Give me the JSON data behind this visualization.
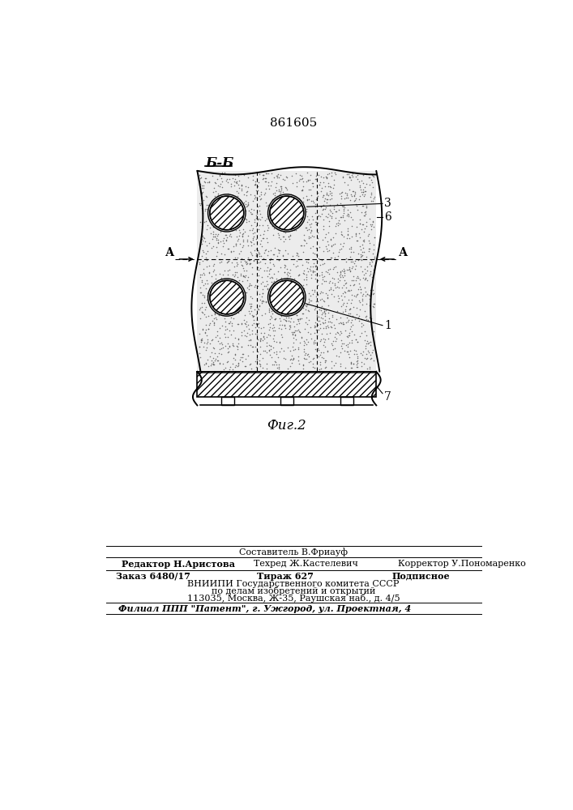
{
  "title_patent": "861605",
  "section_label": "Б-Б",
  "fig_label": "Фиг.2",
  "label_1": "1",
  "label_3": "3",
  "label_6": "6",
  "label_7": "7",
  "label_A_left": "А",
  "label_A_right": "А",
  "footer_line1_center1": "Составитель В.Фриауф",
  "footer_line1_left": "Редактор Н.Аристова",
  "footer_line1_center2": "Техред Ж.Кастелевич",
  "footer_line1_right": "Корректор У.Пономаренко",
  "footer_line2_1": "Заказ 6480/17",
  "footer_line2_2": "Тираж 627",
  "footer_line2_3": "Подписное",
  "footer_line3": "ВНИИПИ Государственного комитета СССР",
  "footer_line4": "по делам изобретений и открытий",
  "footer_line5": "113035, Москва, Ж-35, Раушская наб., д. 4/5",
  "footer_bottom": "Филиал ППП \"Патент\", г. Ужгород, ул. Проектная, 4",
  "bg_color": "#ffffff"
}
